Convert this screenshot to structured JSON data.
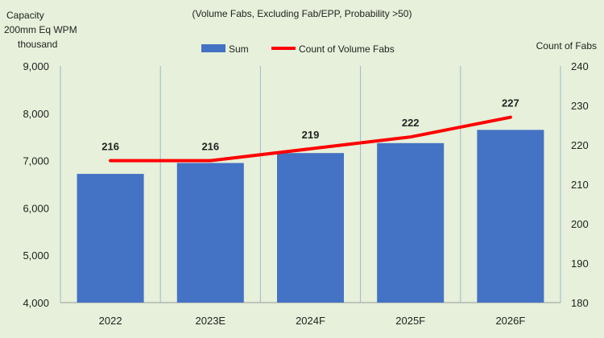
{
  "chart_data": {
    "type": "bar",
    "subtitle": "(Volume Fabs, Excluding Fab/EPP, Probability >50)",
    "ylabel_left": [
      "Capacity",
      "200mm Eq WPM",
      "thousand"
    ],
    "ylabel_right": "Count of Fabs",
    "categories": [
      "2022",
      "2023E",
      "2024F",
      "2025F",
      "2026F"
    ],
    "legend": [
      "Sum",
      "Count of Volume Fabs"
    ],
    "legend_position": "top-center",
    "grid": "vertical separators",
    "series": [
      {
        "name": "Sum",
        "type": "bar",
        "axis": "left",
        "values": [
          6720,
          6950,
          7160,
          7370,
          7650
        ]
      },
      {
        "name": "Count of Volume Fabs",
        "type": "line",
        "axis": "right",
        "values": [
          216,
          216,
          219,
          222,
          227
        ]
      }
    ],
    "ylim_left": [
      4000,
      9000
    ],
    "yticks_left": [
      "4,000",
      "5,000",
      "6,000",
      "7,000",
      "8,000",
      "9,000"
    ],
    "ylim_right": [
      180,
      240
    ],
    "yticks_right": [
      "180",
      "190",
      "200",
      "210",
      "220",
      "230",
      "240"
    ],
    "data_labels": [
      "216",
      "216",
      "219",
      "222",
      "227"
    ],
    "colors": {
      "bar": "#4472c4",
      "line": "#ff0000",
      "background": "#e6f0da",
      "separator": "#9fb8d0"
    }
  }
}
